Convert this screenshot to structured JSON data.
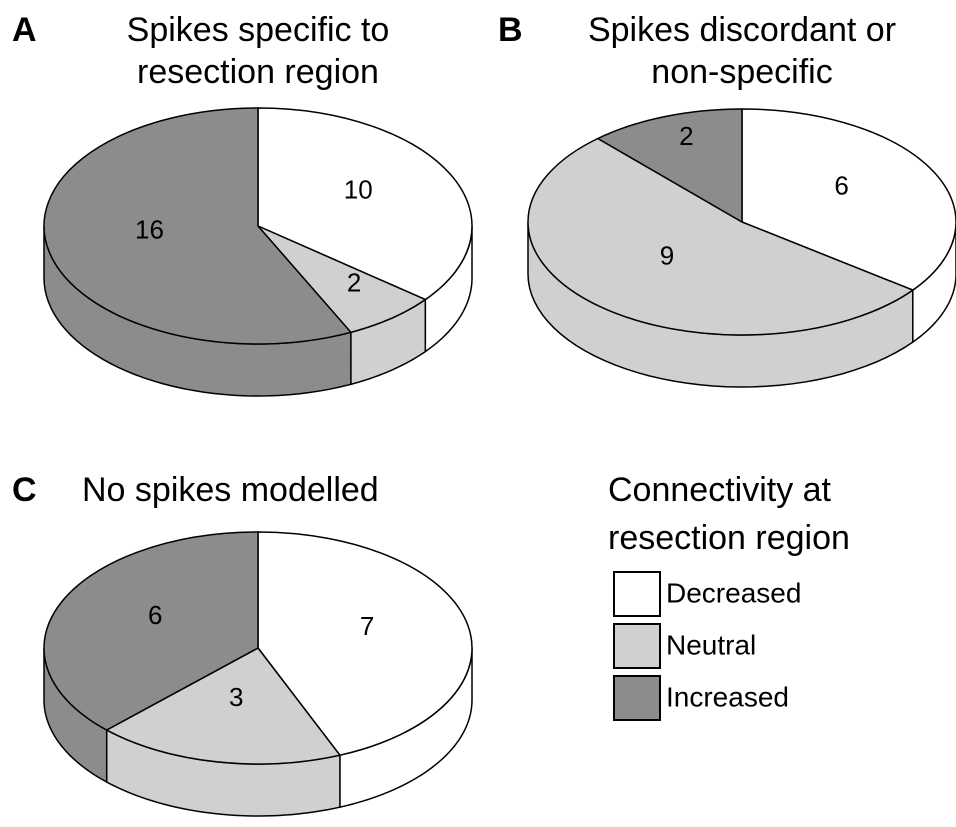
{
  "legend_title": [
    "Connectivity at",
    "resection region"
  ],
  "chart_data": [
    {
      "type": "pie",
      "label": "A",
      "title": [
        "Spikes specific to",
        "resection region"
      ],
      "categories": [
        "Decreased",
        "Neutral",
        "Increased"
      ],
      "values": [
        10,
        2,
        16
      ],
      "colors": [
        "#ffffff",
        "#d0d0d0",
        "#8c8c8c"
      ]
    },
    {
      "type": "pie",
      "label": "B",
      "title": [
        "Spikes discordant or",
        "non-specific"
      ],
      "categories": [
        "Decreased",
        "Neutral",
        "Increased"
      ],
      "values": [
        6,
        9,
        2
      ],
      "colors": [
        "#ffffff",
        "#d0d0d0",
        "#8c8c8c"
      ]
    },
    {
      "type": "pie",
      "label": "C",
      "title": [
        "No spikes modelled"
      ],
      "categories": [
        "Decreased",
        "Neutral",
        "Increased"
      ],
      "values": [
        7,
        3,
        6
      ],
      "colors": [
        "#ffffff",
        "#d0d0d0",
        "#8c8c8c"
      ]
    }
  ]
}
